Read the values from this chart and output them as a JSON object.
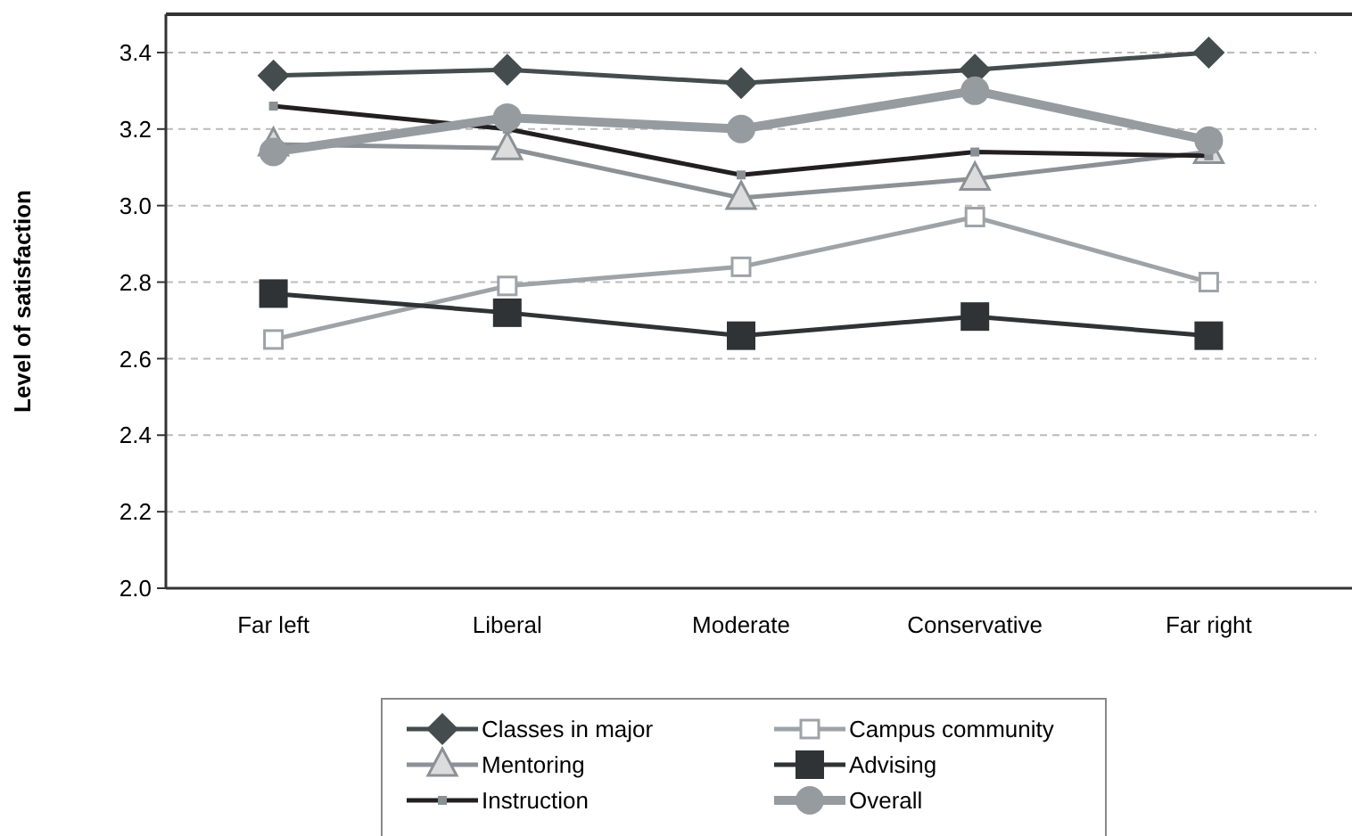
{
  "chart_data": {
    "type": "line",
    "ylabel": "Level of satisfaction",
    "categories": [
      "Far left",
      "Liberal",
      "Moderate",
      "Conservative",
      "Far right"
    ],
    "ylim": [
      2.0,
      3.5
    ],
    "yticks": [
      {
        "value": 2.0,
        "label": "2.0"
      },
      {
        "value": 2.2,
        "label": "2.2"
      },
      {
        "value": 2.4,
        "label": "2.4"
      },
      {
        "value": 2.6,
        "label": "2.6"
      },
      {
        "value": 2.8,
        "label": "2.8"
      },
      {
        "value": 3.0,
        "label": "3.0"
      },
      {
        "value": 3.2,
        "label": "3.2"
      },
      {
        "value": 3.4,
        "label": "3.4"
      }
    ],
    "grid": "y",
    "legend": "bottom",
    "series": [
      {
        "name": "Classes in major",
        "color": "#444c4e",
        "marker": "diamond",
        "values": [
          3.34,
          3.355,
          3.32,
          3.355,
          3.4
        ]
      },
      {
        "name": "Campus community",
        "color": "#9ea3a8",
        "marker": "square",
        "values": [
          2.65,
          2.79,
          2.84,
          2.97,
          2.8
        ]
      },
      {
        "name": "Mentoring",
        "color": "#8c9196",
        "marker": "triangle",
        "values": [
          3.16,
          3.15,
          3.02,
          3.07,
          3.14
        ]
      },
      {
        "name": "Advising",
        "color": "#2f3335",
        "marker": "square",
        "values": [
          2.77,
          2.72,
          2.66,
          2.71,
          2.66
        ]
      },
      {
        "name": "Instruction",
        "color": "#231f20",
        "marker": "square",
        "values": [
          3.26,
          3.2,
          3.08,
          3.14,
          3.13
        ]
      },
      {
        "name": "Overall",
        "color": "#969ba0",
        "marker": "circle",
        "values": [
          3.14,
          3.23,
          3.2,
          3.3,
          3.17
        ]
      }
    ]
  }
}
